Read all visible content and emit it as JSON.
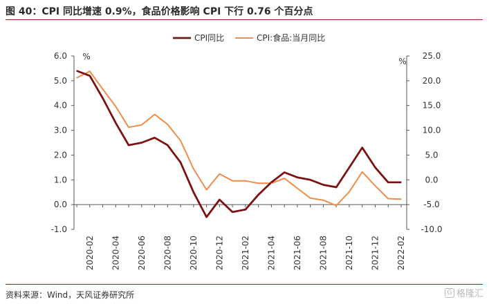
{
  "title": "图 40：CPI 同比增速 0.9%，食品价格影响 CPI 下行 0.76 个百分点",
  "source": "资料来源：Wind，天风证券研究所",
  "watermark": {
    "icon_glyph": "G",
    "text": "格隆汇"
  },
  "colors": {
    "accent": "#a1201d",
    "series1": "#7b1113",
    "series2": "#ee8c48"
  },
  "chart_data": {
    "type": "line",
    "title": "",
    "x": [
      "2020-01",
      "2020-02",
      "2020-03",
      "2020-04",
      "2020-05",
      "2020-06",
      "2020-07",
      "2020-08",
      "2020-09",
      "2020-10",
      "2020-11",
      "2020-12",
      "2021-01",
      "2021-02",
      "2021-03",
      "2021-04",
      "2021-05",
      "2021-06",
      "2021-07",
      "2021-08",
      "2021-09",
      "2021-10",
      "2021-11",
      "2021-12",
      "2022-01",
      "2022-02"
    ],
    "x_tick_labels": [
      "2020-02",
      "2020-04",
      "2020-06",
      "2020-08",
      "2020-10",
      "2020-12",
      "2021-02",
      "2021-04",
      "2021-06",
      "2021-08",
      "2021-10",
      "2021-12",
      "2022-02"
    ],
    "series": [
      {
        "name": "CPI同比",
        "axis": "left",
        "values": [
          5.4,
          5.2,
          4.3,
          3.3,
          2.4,
          2.5,
          2.7,
          2.4,
          1.7,
          0.5,
          -0.5,
          0.2,
          -0.3,
          -0.2,
          0.4,
          0.9,
          1.3,
          1.1,
          1.0,
          0.8,
          0.7,
          1.5,
          2.3,
          1.5,
          0.9,
          0.9
        ]
      },
      {
        "name": "CPI:食品:当月同比",
        "axis": "right",
        "values": [
          20.6,
          21.9,
          18.3,
          14.8,
          10.6,
          11.1,
          13.2,
          11.2,
          7.9,
          2.2,
          -2.0,
          1.2,
          -0.2,
          -0.2,
          -0.7,
          -0.7,
          0.3,
          -1.7,
          -3.7,
          -4.1,
          -5.2,
          -2.4,
          1.6,
          -1.2,
          -3.8,
          -3.9
        ]
      }
    ],
    "left_axis": {
      "unit": "%",
      "ylim": [
        -1.0,
        6.0
      ],
      "ticks": [
        "-1.0",
        "0.0",
        "1.0",
        "2.0",
        "3.0",
        "4.0",
        "5.0",
        "6.0"
      ]
    },
    "right_axis": {
      "unit": "%",
      "ylim": [
        -10.0,
        25.0
      ],
      "ticks": [
        "-10.0",
        "-5.0",
        "0.0",
        "5.0",
        "10.0",
        "15.0",
        "20.0",
        "25.0"
      ]
    },
    "legend": {
      "position": "top-center",
      "entries": [
        "CPI同比",
        "CPI:食品:当月同比"
      ]
    },
    "grid": false
  }
}
